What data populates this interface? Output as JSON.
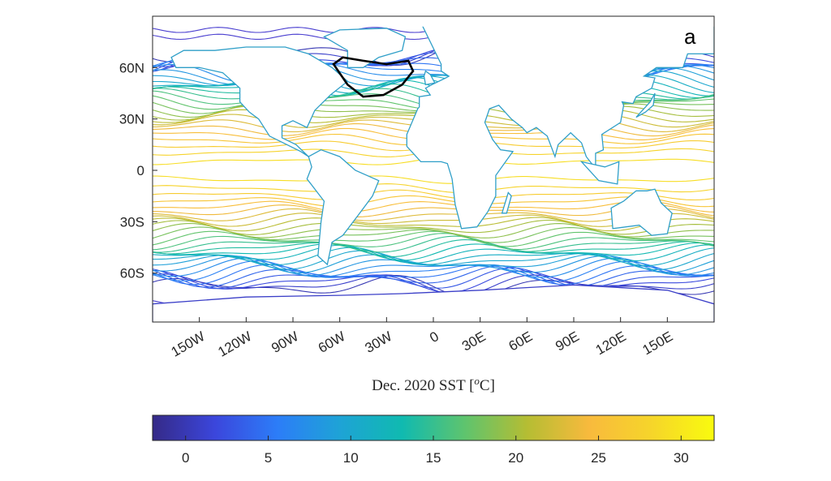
{
  "chart_data": {
    "type": "contour",
    "title": "",
    "panel_label": "a",
    "xlabel": "Dec. 2020 SST [°C]",
    "xlabel_parts": {
      "pre": "Dec. 2020 SST [",
      "sup": "o",
      "post": "C]"
    },
    "ylabel": "",
    "xlim": [
      -180,
      180
    ],
    "ylim": [
      -90,
      90
    ],
    "x_ticks": [
      {
        "value": -150,
        "label": "150W"
      },
      {
        "value": -120,
        "label": "120W"
      },
      {
        "value": -90,
        "label": "90W"
      },
      {
        "value": -60,
        "label": "60W"
      },
      {
        "value": -30,
        "label": "30W"
      },
      {
        "value": 0,
        "label": "0"
      },
      {
        "value": 30,
        "label": "30E"
      },
      {
        "value": 60,
        "label": "60E"
      },
      {
        "value": 90,
        "label": "90E"
      },
      {
        "value": 120,
        "label": "120E"
      },
      {
        "value": 150,
        "label": "150E"
      }
    ],
    "y_ticks": [
      {
        "value": 60,
        "label": "60N"
      },
      {
        "value": 30,
        "label": "30N"
      },
      {
        "value": 0,
        "label": "0"
      },
      {
        "value": -30,
        "label": "30S"
      },
      {
        "value": -60,
        "label": "60S"
      }
    ],
    "contour_levels": {
      "min": 0,
      "max": 29,
      "step": 1
    },
    "colormap": "parula",
    "colormap_stops": [
      "#352a87",
      "#3b46dc",
      "#2c7df8",
      "#1ea3d6",
      "#10bab0",
      "#5ec46e",
      "#b5bd33",
      "#f8ba3d",
      "#f6d52a",
      "#f9fb0e"
    ],
    "highlight_region": {
      "description_color": "#000000",
      "lon_range": [
        -64,
        -13
      ],
      "lat_range": [
        43,
        66
      ]
    },
    "colorbar": {
      "range": [
        -2,
        32
      ],
      "ticks": [
        {
          "value": 0,
          "label": "0"
        },
        {
          "value": 5,
          "label": "5"
        },
        {
          "value": 10,
          "label": "10"
        },
        {
          "value": 15,
          "label": "15"
        },
        {
          "value": 20,
          "label": "20"
        },
        {
          "value": 25,
          "label": "25"
        },
        {
          "value": 30,
          "label": "30"
        }
      ],
      "location": "bottom"
    },
    "grid": false
  }
}
